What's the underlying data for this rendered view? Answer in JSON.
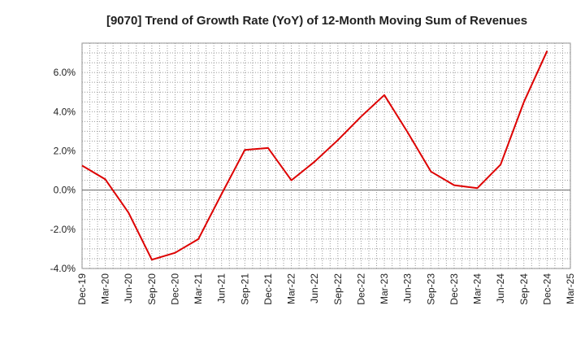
{
  "chart_data": {
    "type": "line",
    "title": "[9070]  Trend of Growth Rate (YoY) of 12-Month Moving Sum of Revenues",
    "xlabel": "",
    "ylabel": "",
    "categories": [
      "Dec-19",
      "Mar-20",
      "Jun-20",
      "Sep-20",
      "Dec-20",
      "Mar-21",
      "Jun-21",
      "Sep-21",
      "Dec-21",
      "Mar-22",
      "Jun-22",
      "Sep-22",
      "Dec-22",
      "Mar-23",
      "Jun-23",
      "Sep-23",
      "Dec-23",
      "Mar-24",
      "Jun-24",
      "Sep-24",
      "Dec-24",
      "Mar-25"
    ],
    "series": [
      {
        "color": "#dd0000",
        "values": [
          1.25,
          0.55,
          -1.15,
          -3.55,
          -3.2,
          -2.5,
          -0.2,
          2.05,
          2.15,
          0.5,
          1.45,
          2.55,
          3.75,
          4.85,
          2.95,
          0.95,
          0.25,
          0.1,
          1.3,
          4.5,
          7.1,
          null
        ]
      }
    ],
    "y_ticks": [
      "-4.0%",
      "-2.0%",
      "0.0%",
      "2.0%",
      "4.0%",
      "6.0%"
    ],
    "y_tick_values": [
      -4,
      -2,
      0,
      2,
      4,
      6
    ],
    "ylim": [
      -4,
      7.5
    ],
    "grid": true,
    "zero_line": true,
    "legend": "none"
  }
}
